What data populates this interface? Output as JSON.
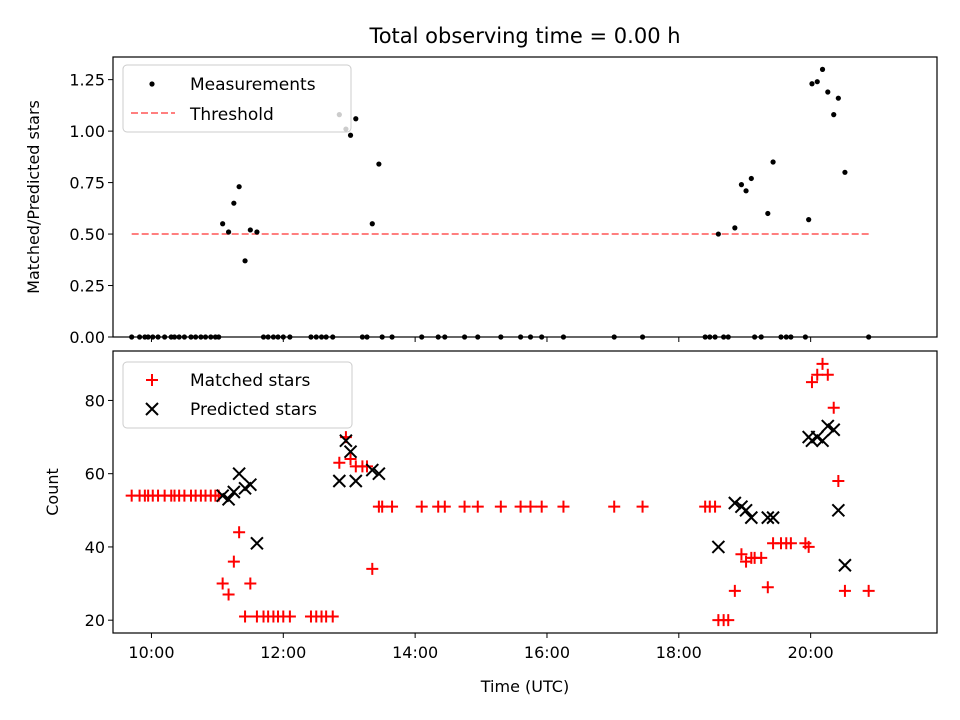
{
  "chart_data": {
    "title": "Total observing time = 0.00 h",
    "xlabel": "Time (UTC)",
    "x_unit": "hours UTC",
    "xlim": [
      "09:25",
      "21:55"
    ],
    "x_ticks": [
      {
        "value": 10,
        "label": "10:00"
      },
      {
        "value": 12,
        "label": "12:00"
      },
      {
        "value": 14,
        "label": "14:00"
      },
      {
        "value": 16,
        "label": "16:00"
      },
      {
        "value": 18,
        "label": "18:00"
      },
      {
        "value": 20,
        "label": "20:00"
      }
    ],
    "panels": [
      {
        "type": "scatter",
        "ylabel": "Matched/Predicted stars",
        "ylim": [
          0,
          1.36
        ],
        "y_ticks": [
          "0.00",
          "0.25",
          "0.50",
          "0.75",
          "1.00",
          "1.25"
        ],
        "y_tick_values": [
          0,
          0.25,
          0.5,
          0.75,
          1.0,
          1.25
        ],
        "legend": {
          "position": "upper left",
          "entries": [
            {
              "label": "Measurements",
              "marker": "dot",
              "color": "#000000"
            },
            {
              "label": "Threshold",
              "marker": "dashed-line",
              "color": "#ff7f7f"
            }
          ]
        },
        "series": [
          {
            "name": "Measurements",
            "marker": "dot",
            "color": "#000000",
            "points": [
              [
                9.7,
                0
              ],
              [
                9.82,
                0
              ],
              [
                9.9,
                0
              ],
              [
                9.95,
                0
              ],
              [
                10.02,
                0
              ],
              [
                10.1,
                0
              ],
              [
                10.2,
                0
              ],
              [
                10.3,
                0
              ],
              [
                10.35,
                0
              ],
              [
                10.42,
                0
              ],
              [
                10.5,
                0
              ],
              [
                10.6,
                0
              ],
              [
                10.67,
                0
              ],
              [
                10.75,
                0
              ],
              [
                10.82,
                0
              ],
              [
                10.9,
                0
              ],
              [
                10.97,
                0
              ],
              [
                11.02,
                0
              ],
              [
                11.08,
                0.55
              ],
              [
                11.17,
                0.51
              ],
              [
                11.25,
                0.65
              ],
              [
                11.33,
                0.73
              ],
              [
                11.42,
                0.37
              ],
              [
                11.5,
                0.52
              ],
              [
                11.6,
                0.51
              ],
              [
                11.7,
                0
              ],
              [
                11.77,
                0
              ],
              [
                11.85,
                0
              ],
              [
                11.92,
                0
              ],
              [
                12.0,
                0
              ],
              [
                12.1,
                0
              ],
              [
                12.42,
                0
              ],
              [
                12.5,
                0
              ],
              [
                12.58,
                0
              ],
              [
                12.65,
                0
              ],
              [
                12.75,
                0
              ],
              [
                12.85,
                1.08
              ],
              [
                12.95,
                1.01
              ],
              [
                13.02,
                0.98
              ],
              [
                13.1,
                1.06
              ],
              [
                13.2,
                0
              ],
              [
                13.27,
                0
              ],
              [
                13.35,
                0.55
              ],
              [
                13.45,
                0.84
              ],
              [
                13.5,
                0
              ],
              [
                13.65,
                0
              ],
              [
                14.1,
                0
              ],
              [
                14.35,
                0
              ],
              [
                14.45,
                0
              ],
              [
                14.75,
                0
              ],
              [
                14.95,
                0
              ],
              [
                15.3,
                0
              ],
              [
                15.6,
                0
              ],
              [
                15.75,
                0
              ],
              [
                15.92,
                0
              ],
              [
                16.25,
                0
              ],
              [
                17.02,
                0
              ],
              [
                17.45,
                0
              ],
              [
                18.4,
                0
              ],
              [
                18.47,
                0
              ],
              [
                18.55,
                0
              ],
              [
                18.6,
                0.5
              ],
              [
                18.68,
                0
              ],
              [
                18.75,
                0
              ],
              [
                18.85,
                0.53
              ],
              [
                18.95,
                0.74
              ],
              [
                19.02,
                0.71
              ],
              [
                19.1,
                0.77
              ],
              [
                19.15,
                0
              ],
              [
                19.25,
                0
              ],
              [
                19.35,
                0.6
              ],
              [
                19.43,
                0.85
              ],
              [
                19.55,
                0
              ],
              [
                19.63,
                0
              ],
              [
                19.7,
                0
              ],
              [
                19.92,
                0
              ],
              [
                19.97,
                0.57
              ],
              [
                20.02,
                1.23
              ],
              [
                20.1,
                1.24
              ],
              [
                20.18,
                1.3
              ],
              [
                20.26,
                1.19
              ],
              [
                20.35,
                1.08
              ],
              [
                20.42,
                1.16
              ],
              [
                20.52,
                0.8
              ],
              [
                20.88,
                0
              ]
            ]
          }
        ],
        "threshold": {
          "name": "Threshold",
          "value": 0.5,
          "x_range": [
            9.7,
            20.88
          ],
          "color": "#ff7f7f",
          "style": "dashed"
        }
      },
      {
        "type": "scatter",
        "ylabel": "Count",
        "ylim": [
          16.5,
          93.5
        ],
        "y_ticks": [
          "20",
          "40",
          "60",
          "80"
        ],
        "y_tick_values": [
          20,
          40,
          60,
          80
        ],
        "legend": {
          "position": "upper left",
          "entries": [
            {
              "label": "Matched stars",
              "marker": "plus",
              "color": "#ff0000"
            },
            {
              "label": "Predicted stars",
              "marker": "x",
              "color": "#000000"
            }
          ]
        },
        "series": [
          {
            "name": "Matched stars",
            "marker": "plus",
            "color": "#ff0000",
            "points": [
              [
                9.7,
                54
              ],
              [
                9.82,
                54
              ],
              [
                9.9,
                54
              ],
              [
                9.95,
                54
              ],
              [
                10.02,
                54
              ],
              [
                10.1,
                54
              ],
              [
                10.2,
                54
              ],
              [
                10.3,
                54
              ],
              [
                10.35,
                54
              ],
              [
                10.42,
                54
              ],
              [
                10.5,
                54
              ],
              [
                10.6,
                54
              ],
              [
                10.67,
                54
              ],
              [
                10.75,
                54
              ],
              [
                10.82,
                54
              ],
              [
                10.9,
                54
              ],
              [
                10.97,
                54
              ],
              [
                11.02,
                54
              ],
              [
                11.08,
                30
              ],
              [
                11.17,
                27
              ],
              [
                11.25,
                36
              ],
              [
                11.33,
                44
              ],
              [
                11.42,
                21
              ],
              [
                11.5,
                30
              ],
              [
                11.6,
                21
              ],
              [
                11.7,
                21
              ],
              [
                11.77,
                21
              ],
              [
                11.85,
                21
              ],
              [
                11.92,
                21
              ],
              [
                12.0,
                21
              ],
              [
                12.1,
                21
              ],
              [
                12.42,
                21
              ],
              [
                12.5,
                21
              ],
              [
                12.58,
                21
              ],
              [
                12.65,
                21
              ],
              [
                12.75,
                21
              ],
              [
                12.85,
                63
              ],
              [
                12.95,
                70
              ],
              [
                13.02,
                64
              ],
              [
                13.1,
                62
              ],
              [
                13.2,
                62
              ],
              [
                13.27,
                62
              ],
              [
                13.35,
                34
              ],
              [
                13.45,
                51
              ],
              [
                13.5,
                51
              ],
              [
                13.65,
                51
              ],
              [
                14.1,
                51
              ],
              [
                14.35,
                51
              ],
              [
                14.45,
                51
              ],
              [
                14.75,
                51
              ],
              [
                14.95,
                51
              ],
              [
                15.3,
                51
              ],
              [
                15.6,
                51
              ],
              [
                15.75,
                51
              ],
              [
                15.92,
                51
              ],
              [
                16.25,
                51
              ],
              [
                17.02,
                51
              ],
              [
                17.45,
                51
              ],
              [
                18.4,
                51
              ],
              [
                18.47,
                51
              ],
              [
                18.55,
                51
              ],
              [
                18.6,
                20
              ],
              [
                18.68,
                20
              ],
              [
                18.75,
                20
              ],
              [
                18.85,
                28
              ],
              [
                18.95,
                38
              ],
              [
                19.02,
                36
              ],
              [
                19.1,
                37
              ],
              [
                19.15,
                37
              ],
              [
                19.25,
                37
              ],
              [
                19.35,
                29
              ],
              [
                19.43,
                41
              ],
              [
                19.55,
                41
              ],
              [
                19.63,
                41
              ],
              [
                19.7,
                41
              ],
              [
                19.92,
                41
              ],
              [
                19.97,
                40
              ],
              [
                20.02,
                85
              ],
              [
                20.1,
                87
              ],
              [
                20.18,
                90
              ],
              [
                20.26,
                87
              ],
              [
                20.35,
                78
              ],
              [
                20.42,
                58
              ],
              [
                20.52,
                28
              ],
              [
                20.88,
                28
              ]
            ]
          },
          {
            "name": "Predicted stars",
            "marker": "x",
            "color": "#000000",
            "points": [
              [
                11.08,
                54
              ],
              [
                11.17,
                53
              ],
              [
                11.25,
                55
              ],
              [
                11.33,
                60
              ],
              [
                11.42,
                56
              ],
              [
                11.5,
                57
              ],
              [
                11.6,
                41
              ],
              [
                12.85,
                58
              ],
              [
                12.95,
                69
              ],
              [
                13.02,
                66
              ],
              [
                13.1,
                58
              ],
              [
                13.35,
                61
              ],
              [
                13.45,
                60
              ],
              [
                18.6,
                40
              ],
              [
                18.85,
                52
              ],
              [
                18.95,
                51
              ],
              [
                19.02,
                50
              ],
              [
                19.1,
                48
              ],
              [
                19.35,
                48
              ],
              [
                19.43,
                48
              ],
              [
                19.97,
                70
              ],
              [
                20.02,
                69
              ],
              [
                20.1,
                70
              ],
              [
                20.18,
                69
              ],
              [
                20.26,
                73
              ],
              [
                20.35,
                72
              ],
              [
                20.42,
                50
              ],
              [
                20.52,
                35
              ]
            ]
          }
        ]
      }
    ]
  }
}
